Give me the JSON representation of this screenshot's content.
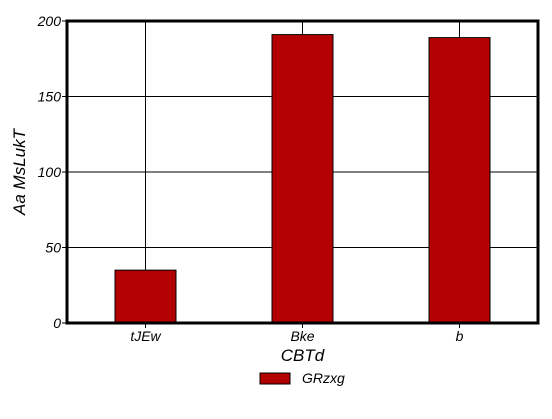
{
  "chart_data": {
    "type": "bar",
    "categories": [
      "tJEw",
      "Bke",
      "b"
    ],
    "series": [
      {
        "name": "GRzxg",
        "values": [
          35,
          191,
          189
        ]
      }
    ],
    "xlabel": "CBTd",
    "ylabel": "Aa MsLukT",
    "ylim": [
      0,
      200
    ],
    "yticks": [
      0,
      50,
      100,
      150,
      200
    ],
    "grid": true,
    "legend_position": "bottom-center",
    "colors": {
      "bar_fill": "#b30000",
      "bar_stroke": "#000000",
      "grid": "#000000",
      "axis": "#000000"
    }
  }
}
